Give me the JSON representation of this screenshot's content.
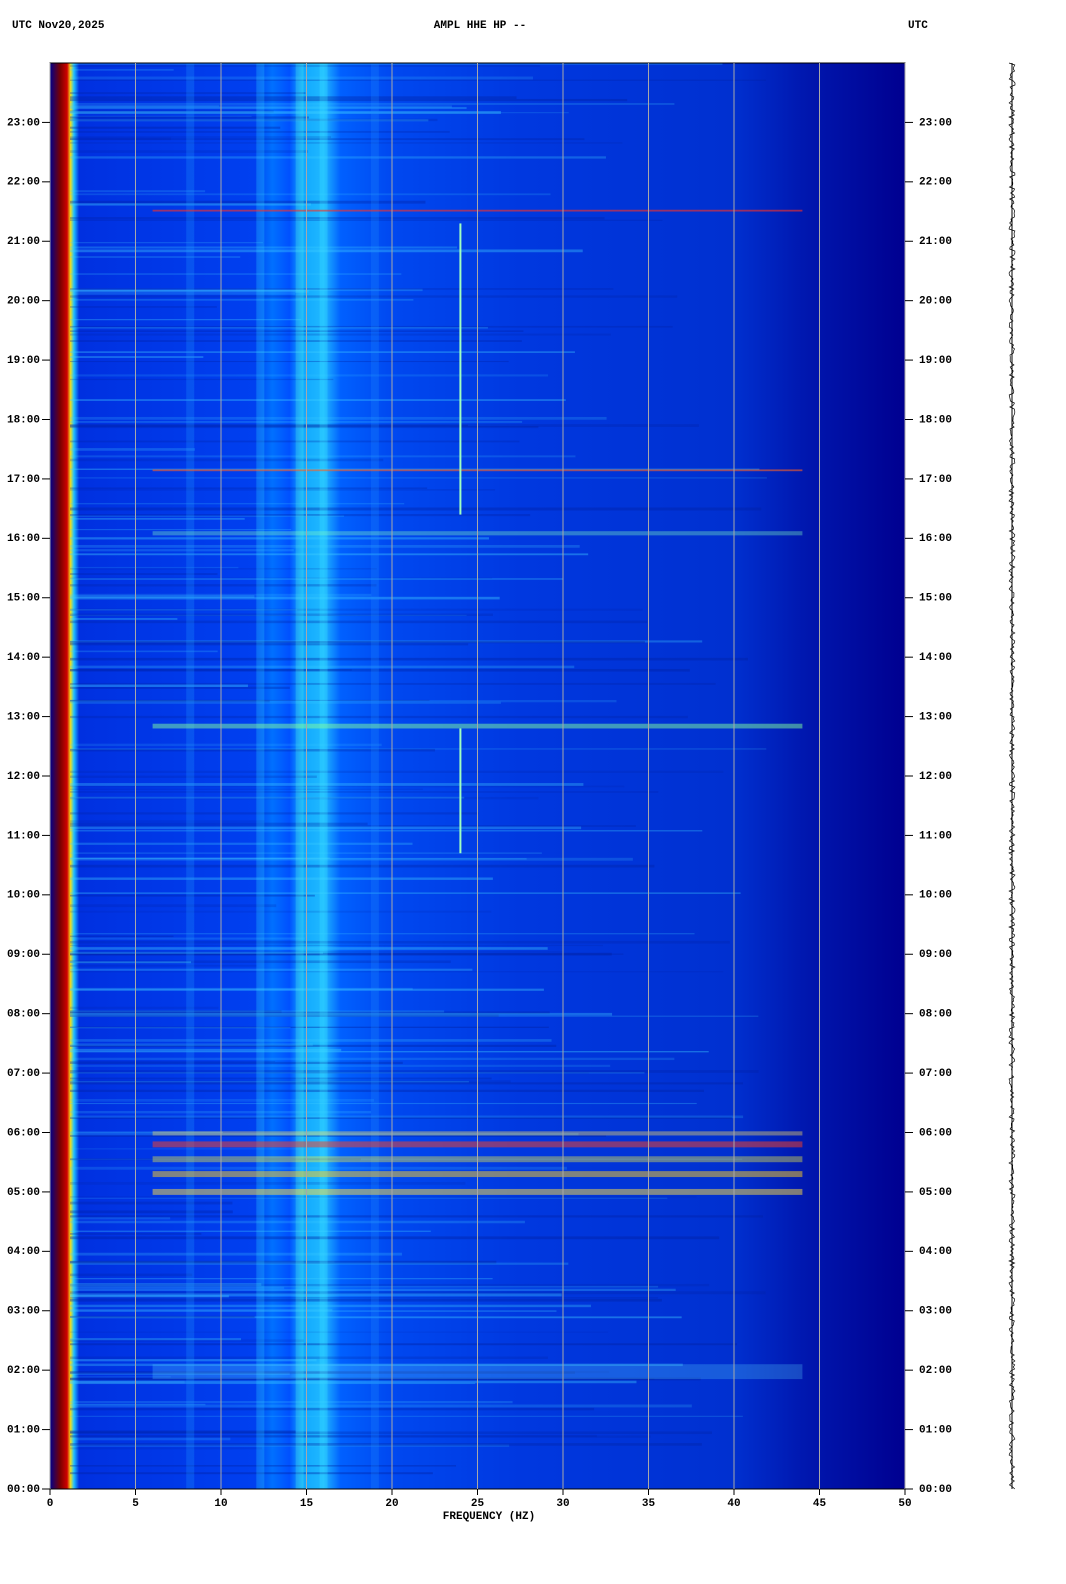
{
  "chart_data": {
    "type": "spectrogram",
    "header_left": "UTC  Nov20,2025",
    "title": "AMPL HHE HP --",
    "header_right": "UTC",
    "xlabel": "FREQUENCY (HZ)",
    "xlim": [
      0,
      50
    ],
    "xticks": [
      0,
      5,
      10,
      15,
      20,
      25,
      30,
      35,
      40,
      45,
      50
    ],
    "ylim": [
      0,
      24
    ],
    "yticks": [
      {
        "value": 0,
        "label": "00:00"
      },
      {
        "value": 1,
        "label": "01:00"
      },
      {
        "value": 2,
        "label": "02:00"
      },
      {
        "value": 3,
        "label": "03:00"
      },
      {
        "value": 4,
        "label": "04:00"
      },
      {
        "value": 5,
        "label": "05:00"
      },
      {
        "value": 6,
        "label": "06:00"
      },
      {
        "value": 7,
        "label": "07:00"
      },
      {
        "value": 8,
        "label": "08:00"
      },
      {
        "value": 9,
        "label": "09:00"
      },
      {
        "value": 10,
        "label": "10:00"
      },
      {
        "value": 11,
        "label": "11:00"
      },
      {
        "value": 12,
        "label": "12:00"
      },
      {
        "value": 13,
        "label": "13:00"
      },
      {
        "value": 14,
        "label": "14:00"
      },
      {
        "value": 15,
        "label": "15:00"
      },
      {
        "value": 16,
        "label": "16:00"
      },
      {
        "value": 17,
        "label": "17:00"
      },
      {
        "value": 18,
        "label": "18:00"
      },
      {
        "value": 19,
        "label": "19:00"
      },
      {
        "value": 20,
        "label": "20:00"
      },
      {
        "value": 21,
        "label": "21:00"
      },
      {
        "value": 22,
        "label": "22:00"
      },
      {
        "value": 23,
        "label": "23:00"
      }
    ],
    "grid": true,
    "grid_color": "#a8a8a8"
  }
}
